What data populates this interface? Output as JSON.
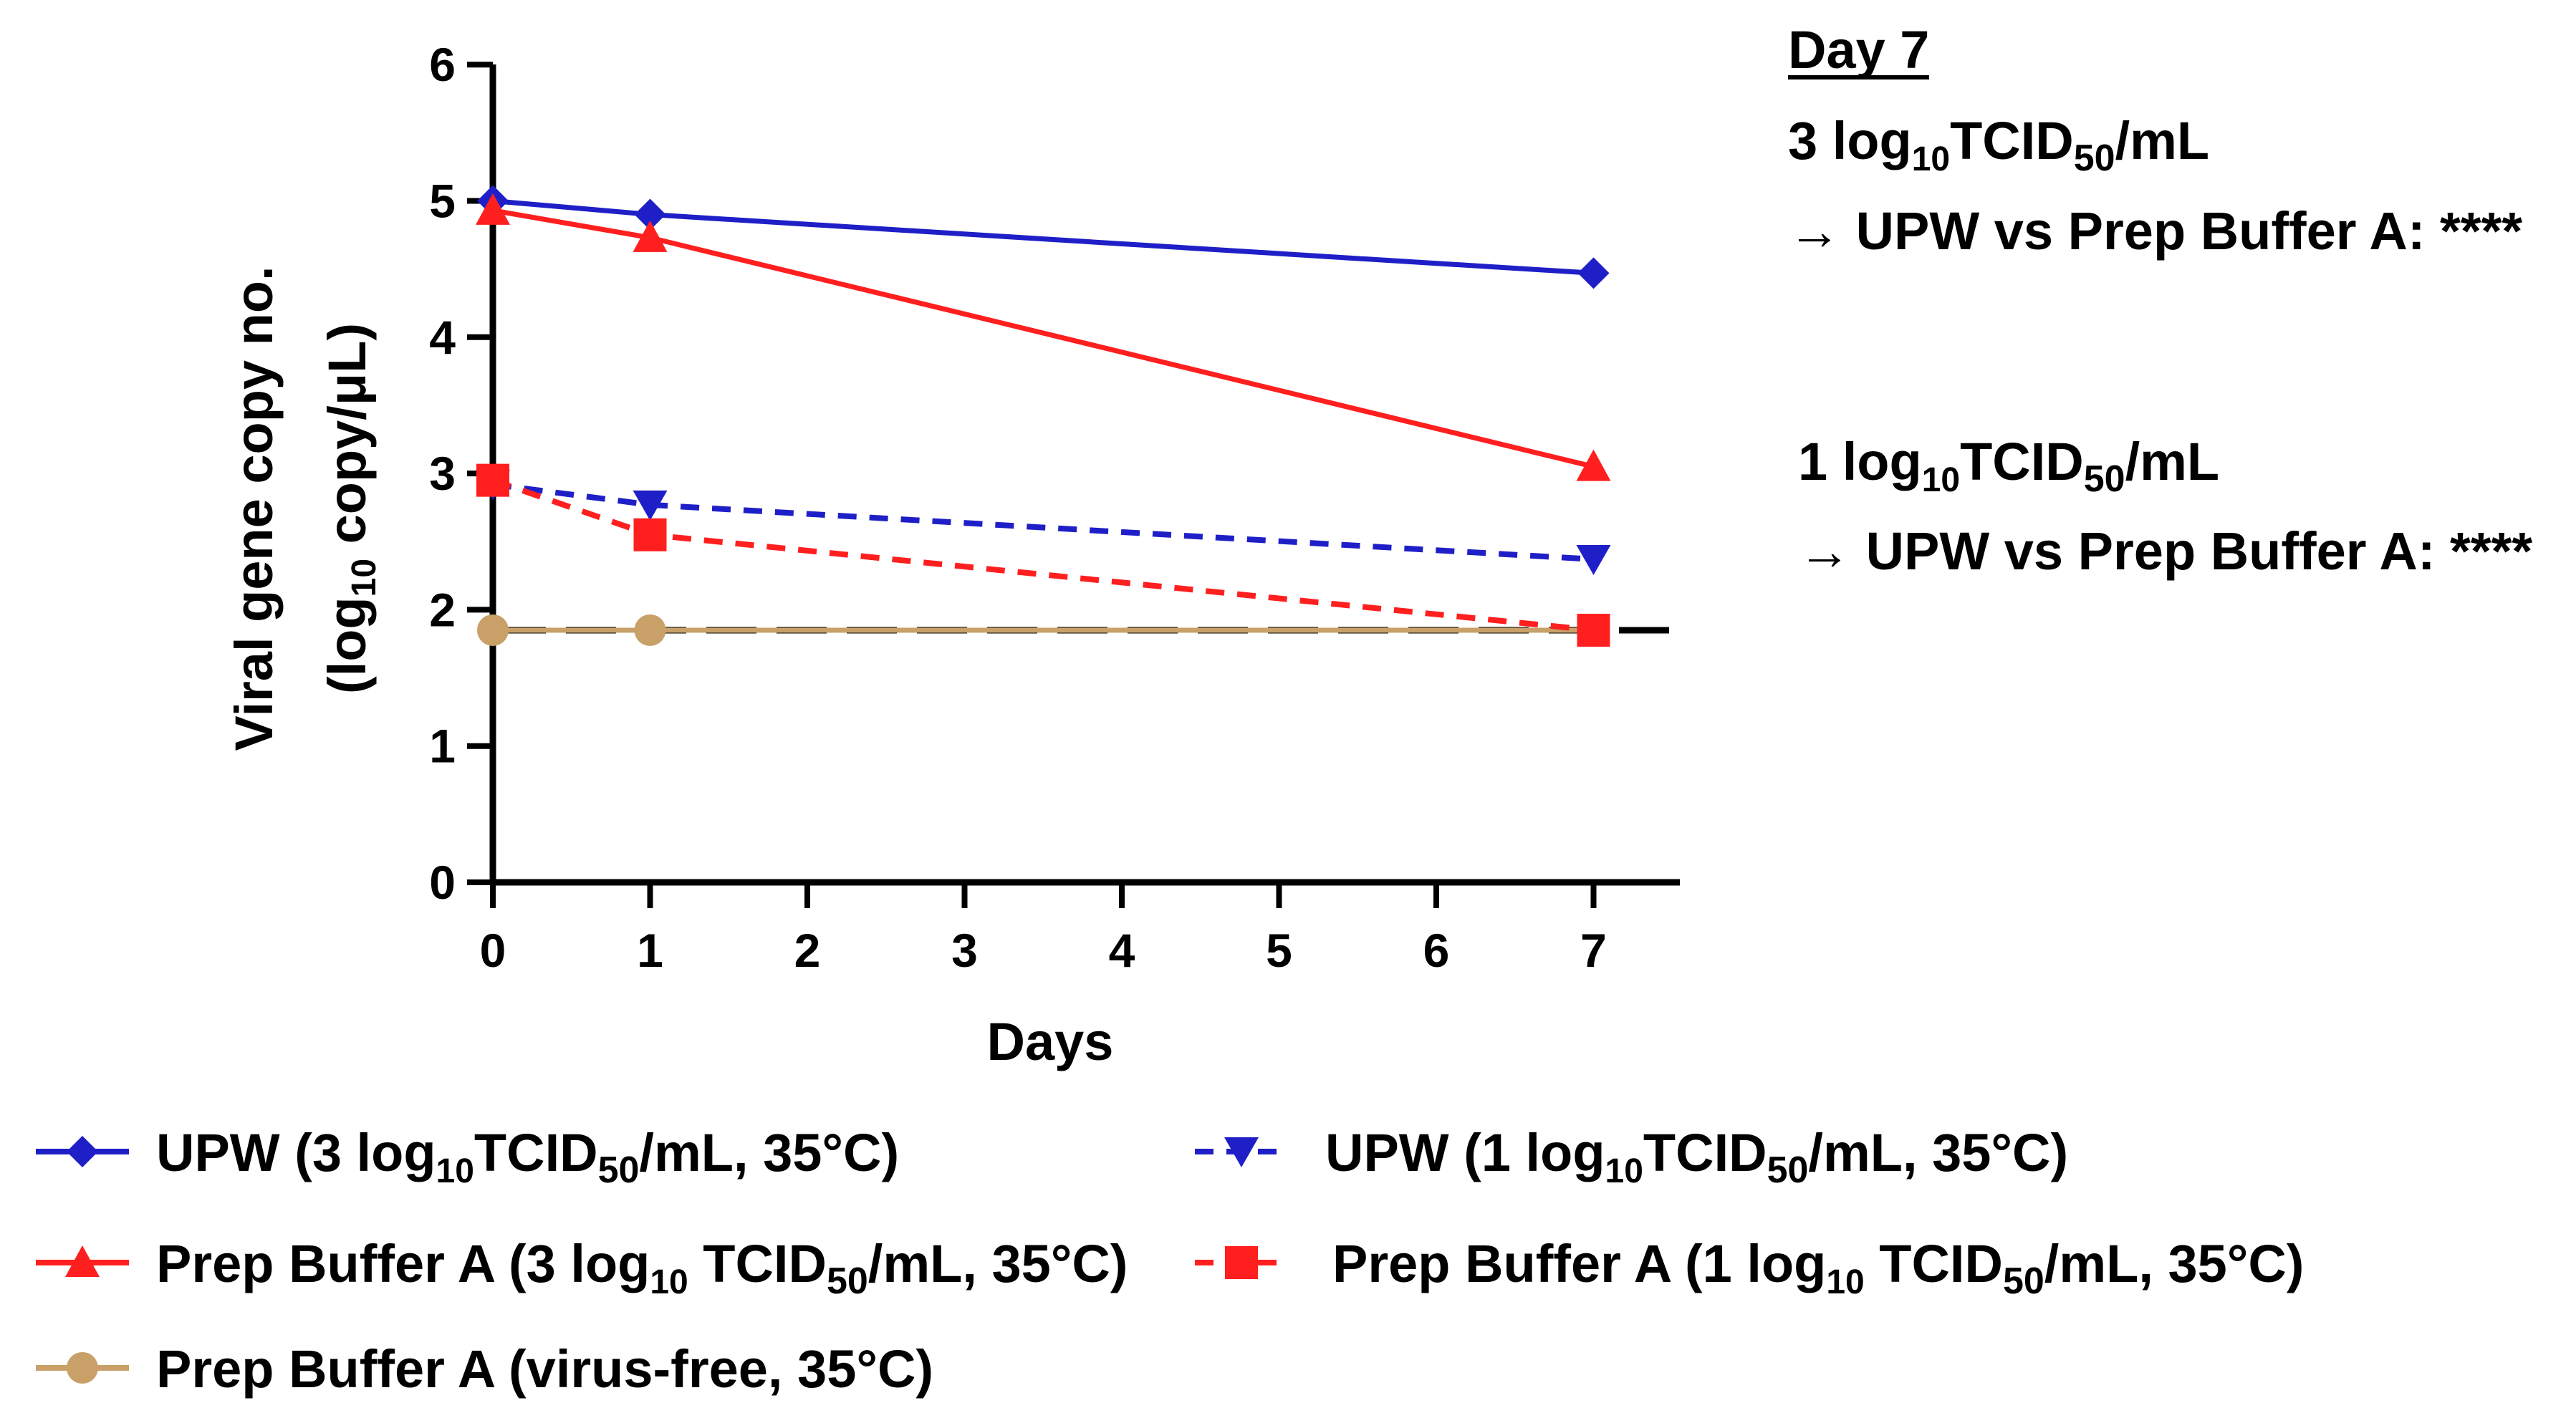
{
  "chart_data": {
    "type": "line",
    "xlabel": "Days",
    "ylabel_line1": "Viral gene copy no.",
    "ylabel_line2_pre": "(log",
    "ylabel_line2_sub": "10",
    "ylabel_line2_post": " copy/μL)",
    "xlim": [
      0,
      7.5
    ],
    "ylim": [
      0,
      6
    ],
    "xticks": [
      0,
      1,
      2,
      3,
      4,
      5,
      6,
      7
    ],
    "yticks": [
      0,
      1,
      2,
      3,
      4,
      5,
      6
    ],
    "x": [
      0,
      1,
      7
    ],
    "series": [
      {
        "name": "UPW (3 log10 TCID50/mL, 35°C)",
        "values": [
          5.0,
          4.9,
          4.47
        ],
        "color": "#1f1fc8",
        "marker": "diamond",
        "dashed": false
      },
      {
        "name": "Prep Buffer A (3 log10 TCID50/mL, 35°C)",
        "values": [
          4.93,
          4.73,
          3.05
        ],
        "color": "#ff1f1f",
        "marker": "triangle-up",
        "dashed": false
      },
      {
        "name": "UPW (1 log10 TCID50/mL, 35°C)",
        "values": [
          2.92,
          2.77,
          2.37
        ],
        "color": "#1f1fc8",
        "marker": "triangle-down",
        "dashed": true
      },
      {
        "name": "Prep Buffer A (1 log10 TCID50/mL, 35°C)",
        "values": [
          2.95,
          2.55,
          1.85
        ],
        "color": "#ff1f1f",
        "marker": "square",
        "dashed": true
      },
      {
        "name": "Prep Buffer A (virus-free, 35°C)",
        "values": [
          1.85,
          1.85,
          1.85
        ],
        "color": "#c8a068",
        "marker": "circle",
        "dashed": false
      }
    ],
    "reference_line": {
      "y": 1.85,
      "color": "#000000",
      "style": "dashed"
    },
    "annotations": {
      "heading": "Day 7",
      "group1_pre": "3 log",
      "group1_sub": "10",
      "group1_post": "TCID",
      "group1_sub2": "50",
      "group1_tail": "/mL",
      "group1_result": "→ UPW vs Prep Buffer A: ****",
      "group2_pre": "1 log",
      "group2_sub": "10",
      "group2_post": "TCID",
      "group2_sub2": "50",
      "group2_tail": "/mL",
      "group2_result": "→ UPW vs Prep Buffer A:  ****"
    },
    "legend": [
      {
        "pre": "UPW (3 log",
        "sub": "10",
        "mid": "TCID",
        "sub2": "50",
        "post": "/mL, 35°C)",
        "series": 0
      },
      {
        "pre": "UPW (1 log",
        "sub": "10",
        "mid": "TCID",
        "sub2": "50",
        "post": "/mL, 35°C)",
        "series": 2
      },
      {
        "pre": "Prep Buffer A (3 log",
        "sub": "10",
        "mid": " TCID",
        "sub2": "50",
        "post": "/mL, 35°C)",
        "series": 1
      },
      {
        "pre": "Prep Buffer A (1 log",
        "sub": "10",
        "mid": " TCID",
        "sub2": "50",
        "post": "/mL, 35°C)",
        "series": 3
      },
      {
        "pre": "Prep Buffer A (virus-free, 35°C)",
        "sub": "",
        "mid": "",
        "sub2": "",
        "post": "",
        "series": 4
      }
    ]
  }
}
